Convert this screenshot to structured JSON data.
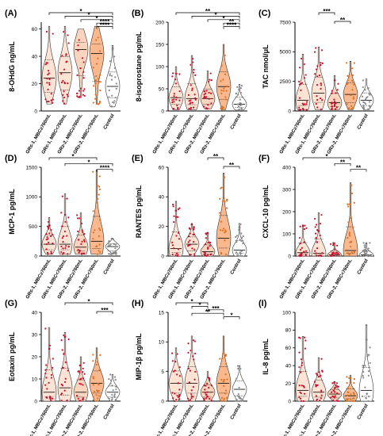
{
  "categories": [
    "GR≤-1, MBC≥760mL",
    "GR≤-1, MBC<760mL",
    "GR≥-2, MBC≥760mL",
    "GR≥-2, MBC<760mL",
    "Control"
  ],
  "colors": {
    "gr_light": "#fde3d3",
    "gr_med": "#fbd4bd",
    "gr_orange": "#f9b88e",
    "control": "#ffffff",
    "points_red": "#c8102e",
    "points_orange": "#e07020",
    "points_gray": "#888888"
  },
  "chart_data": [
    {
      "panel": "(A)",
      "type": "violin",
      "ylabel": "8-OHdG ng/mL",
      "yticks": [
        0,
        20,
        40,
        60
      ],
      "ylim": [
        0,
        65
      ],
      "medians": [
        24,
        28,
        45,
        42,
        18
      ],
      "ranges": [
        [
          5,
          62
        ],
        [
          5,
          62
        ],
        [
          10,
          60
        ],
        [
          5,
          62
        ],
        [
          3,
          48
        ]
      ],
      "sig": [
        {
          "from": 0,
          "to": 4,
          "stars": "*"
        },
        {
          "from": 1,
          "to": 4,
          "stars": "*"
        },
        {
          "from": 2,
          "to": 4,
          "stars": "*"
        },
        {
          "from": 3,
          "to": 4,
          "stars": "****"
        },
        {
          "from": 3,
          "to": 4,
          "stars": "****"
        }
      ]
    },
    {
      "panel": "(B)",
      "type": "violin",
      "ylabel": "8-isoprostane pg/mL",
      "yticks": [
        0,
        50,
        100,
        150,
        200
      ],
      "ylim": [
        0,
        200
      ],
      "medians": [
        30,
        28,
        28,
        55,
        15
      ],
      "ranges": [
        [
          3,
          100
        ],
        [
          3,
          125
        ],
        [
          5,
          90
        ],
        [
          3,
          150
        ],
        [
          2,
          60
        ]
      ],
      "sig": [
        {
          "from": 0,
          "to": 4,
          "stars": "**"
        },
        {
          "from": 1,
          "to": 4,
          "stars": "*"
        },
        {
          "from": 2,
          "to": 4,
          "stars": "*"
        },
        {
          "from": 3,
          "to": 4,
          "stars": "**"
        },
        {
          "from": 3,
          "to": 4,
          "stars": "****"
        }
      ]
    },
    {
      "panel": "(C)",
      "type": "violin",
      "ylabel": "TAC nmol/μL",
      "yticks": [
        0,
        2500,
        5000,
        7500
      ],
      "ylim": [
        0,
        7500
      ],
      "medians": [
        900,
        1500,
        700,
        1400,
        900
      ],
      "ranges": [
        [
          100,
          4800
        ],
        [
          100,
          5400
        ],
        [
          100,
          3000
        ],
        [
          100,
          4200
        ],
        [
          100,
          2700
        ]
      ],
      "sig": [
        {
          "from": 1,
          "to": 2,
          "stars": "***"
        },
        {
          "from": 2,
          "to": 3,
          "stars": "**"
        }
      ]
    },
    {
      "panel": "(D)",
      "type": "violin",
      "ylabel": "MCP-1 pg/mL",
      "yticks": [
        0,
        500,
        1000,
        1500
      ],
      "ylim": [
        0,
        1500
      ],
      "medians": [
        200,
        200,
        150,
        250,
        160
      ],
      "ranges": [
        [
          30,
          650
        ],
        [
          30,
          1050
        ],
        [
          30,
          730
        ],
        [
          30,
          1450
        ],
        [
          30,
          300
        ]
      ],
      "sig": [
        {
          "from": 0,
          "to": 3,
          "stars": "*"
        },
        {
          "from": 1,
          "to": 4,
          "stars": "*"
        },
        {
          "from": 3,
          "to": 4,
          "stars": "****"
        }
      ]
    },
    {
      "panel": "(E)",
      "type": "violin",
      "ylabel": "RANTES pg/mL",
      "yticks": [
        0,
        20,
        40,
        60
      ],
      "ylim": [
        0,
        60
      ],
      "medians": [
        5,
        8,
        3,
        12,
        4
      ],
      "ranges": [
        [
          0,
          37
        ],
        [
          0,
          22
        ],
        [
          0,
          16
        ],
        [
          0,
          56
        ],
        [
          0,
          22
        ]
      ],
      "sig": [
        {
          "from": 2,
          "to": 3,
          "stars": "**"
        },
        {
          "from": 3,
          "to": 4,
          "stars": "**"
        }
      ]
    },
    {
      "panel": "(F)",
      "type": "violin",
      "ylabel": "CXCL-10 pg/mL",
      "yticks": [
        0,
        100,
        200,
        300,
        400
      ],
      "ylim": [
        0,
        400
      ],
      "medians": [
        15,
        12,
        5,
        25,
        5
      ],
      "ranges": [
        [
          0,
          140
        ],
        [
          0,
          195
        ],
        [
          0,
          60
        ],
        [
          0,
          330
        ],
        [
          0,
          60
        ]
      ],
      "sig": [
        {
          "from": 0,
          "to": 3,
          "stars": "*"
        },
        {
          "from": 2,
          "to": 3,
          "stars": "**"
        },
        {
          "from": 3,
          "to": 4,
          "stars": "**"
        }
      ]
    },
    {
      "panel": "(G)",
      "type": "violin",
      "ylabel": "Eotaxin pg/mL",
      "yticks": [
        0,
        10,
        20,
        30,
        40
      ],
      "ylim": [
        0,
        40
      ],
      "medians": [
        4,
        6,
        4,
        8,
        4
      ],
      "ranges": [
        [
          0,
          33
        ],
        [
          0,
          31
        ],
        [
          0,
          20
        ],
        [
          0,
          24
        ],
        [
          0,
          12
        ]
      ],
      "sig": [
        {
          "from": 1,
          "to": 4,
          "stars": "*"
        },
        {
          "from": 3,
          "to": 4,
          "stars": "***"
        }
      ]
    },
    {
      "panel": "(H)",
      "type": "violin",
      "ylabel": "MIP-1β pg/mL",
      "yticks": [
        0,
        5,
        10,
        15
      ],
      "ylim": [
        0,
        15
      ],
      "medians": [
        3,
        3,
        1.5,
        3,
        2
      ],
      "ranges": [
        [
          0,
          9
        ],
        [
          0,
          11
        ],
        [
          0,
          5
        ],
        [
          0,
          11
        ],
        [
          0,
          6
        ]
      ],
      "sig": [
        {
          "from": 0,
          "to": 2,
          "stars": "*"
        },
        {
          "from": 1,
          "to": 2,
          "stars": "*"
        },
        {
          "from": 2,
          "to": 3,
          "stars": "***"
        },
        {
          "from": 1,
          "to": 3,
          "stars": "**"
        },
        {
          "from": 3,
          "to": 4,
          "stars": "*"
        }
      ]
    },
    {
      "panel": "(I)",
      "type": "violin",
      "ylabel": "IL-8 pg/mL",
      "yticks": [
        0,
        20,
        40,
        60,
        80,
        100
      ],
      "ylim": [
        0,
        100
      ],
      "medians": [
        12,
        10,
        8,
        6,
        12
      ],
      "ranges": [
        [
          0,
          73
        ],
        [
          0,
          49
        ],
        [
          0,
          22
        ],
        [
          0,
          29
        ],
        [
          0,
          86
        ]
      ],
      "sig": []
    }
  ]
}
